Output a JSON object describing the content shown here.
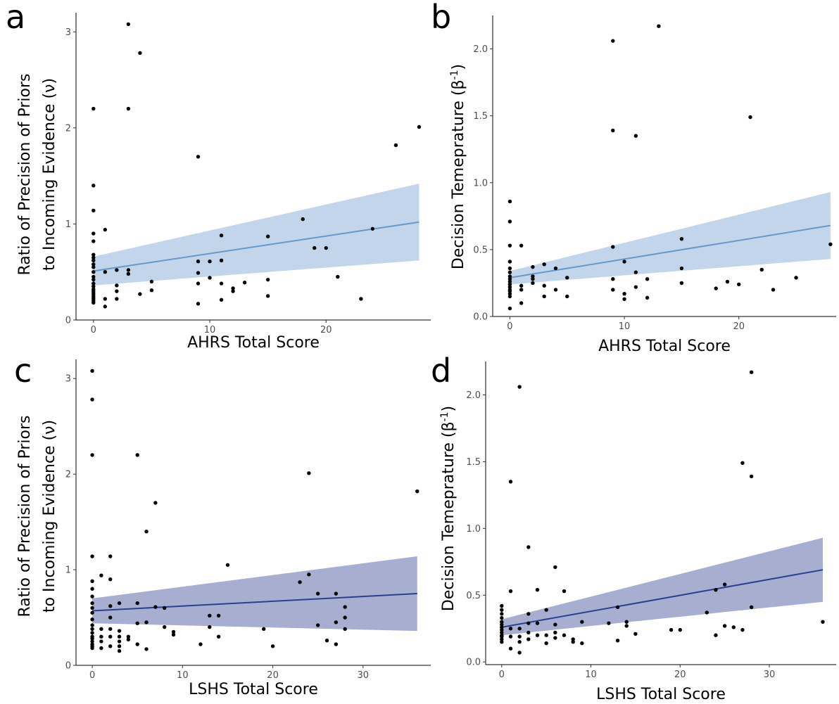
{
  "chart_data": [
    {
      "panel_label": "a",
      "type": "scatter",
      "xlabel": "AHRS Total Score",
      "ylabel_lines": [
        "Ratio of Precision of Priors",
        "to Incoming Evidence  (ν)"
      ],
      "xlim": [
        -1.5,
        29
      ],
      "ylim": [
        0,
        3.2
      ],
      "xticks": [
        0,
        10,
        20
      ],
      "yticks": [
        0,
        1,
        2,
        3
      ],
      "grid": false,
      "fit": {
        "x": [
          0,
          28
        ],
        "y": [
          0.51,
          1.02
        ],
        "lower": [
          0.36,
          0.62
        ],
        "upper": [
          0.66,
          1.42
        ],
        "color": "#6699cc",
        "band_color": "#c2d5ea"
      },
      "points": [
        [
          0,
          0.18
        ],
        [
          0,
          0.2
        ],
        [
          0,
          0.22
        ],
        [
          0,
          0.24
        ],
        [
          0,
          0.26
        ],
        [
          0,
          0.28
        ],
        [
          0,
          0.3
        ],
        [
          0,
          0.32
        ],
        [
          0,
          0.35
        ],
        [
          0,
          0.38
        ],
        [
          0,
          0.42
        ],
        [
          0,
          0.45
        ],
        [
          0,
          0.5
        ],
        [
          0,
          0.55
        ],
        [
          0,
          0.58
        ],
        [
          0,
          0.62
        ],
        [
          0,
          0.65
        ],
        [
          0,
          0.68
        ],
        [
          0,
          0.82
        ],
        [
          0,
          0.9
        ],
        [
          0,
          1.14
        ],
        [
          0,
          1.4
        ],
        [
          0,
          2.2
        ],
        [
          1,
          0.14
        ],
        [
          1,
          0.22
        ],
        [
          1,
          0.5
        ],
        [
          1,
          0.94
        ],
        [
          2,
          0.22
        ],
        [
          2,
          0.3
        ],
        [
          2,
          0.36
        ],
        [
          2,
          0.52
        ],
        [
          3,
          0.48
        ],
        [
          3,
          0.52
        ],
        [
          3,
          2.2
        ],
        [
          3,
          3.08
        ],
        [
          4,
          0.27
        ],
        [
          4,
          2.78
        ],
        [
          5,
          0.31
        ],
        [
          5,
          0.4
        ],
        [
          9,
          0.17
        ],
        [
          9,
          0.38
        ],
        [
          9,
          0.49
        ],
        [
          9,
          0.61
        ],
        [
          9,
          1.7
        ],
        [
          10,
          0.44
        ],
        [
          10,
          0.61
        ],
        [
          11,
          0.21
        ],
        [
          11,
          0.38
        ],
        [
          11,
          0.62
        ],
        [
          11,
          0.88
        ],
        [
          12,
          0.3
        ],
        [
          12,
          0.33
        ],
        [
          13,
          0.39
        ],
        [
          15,
          0.25
        ],
        [
          15,
          0.42
        ],
        [
          15,
          0.87
        ],
        [
          18,
          1.05
        ],
        [
          19,
          0.75
        ],
        [
          20,
          0.75
        ],
        [
          21,
          0.45
        ],
        [
          23,
          0.22
        ],
        [
          24,
          0.95
        ],
        [
          26,
          1.82
        ],
        [
          28,
          2.01
        ]
      ]
    },
    {
      "panel_label": "b",
      "type": "scatter",
      "xlabel": "AHRS Total Score",
      "ylabel_lines": [
        "Decision Temeprature (β-1)"
      ],
      "xlim": [
        -1.5,
        28.5
      ],
      "ylim": [
        0,
        2.25
      ],
      "xticks": [
        0,
        10,
        20
      ],
      "yticks": [
        0.0,
        0.5,
        1.0,
        1.5,
        2.0
      ],
      "yticklabels": [
        "0.0",
        "0.5",
        "1.0",
        "1.5",
        "2.0"
      ],
      "grid": false,
      "fit": {
        "x": [
          0,
          28
        ],
        "y": [
          0.29,
          0.68
        ],
        "lower": [
          0.24,
          0.43
        ],
        "upper": [
          0.34,
          0.93
        ],
        "color": "#6699cc",
        "band_color": "#c2d5ea"
      },
      "points": [
        [
          0,
          0.06
        ],
        [
          0,
          0.15
        ],
        [
          0,
          0.17
        ],
        [
          0,
          0.19
        ],
        [
          0,
          0.2
        ],
        [
          0,
          0.22
        ],
        [
          0,
          0.24
        ],
        [
          0,
          0.26
        ],
        [
          0,
          0.28
        ],
        [
          0,
          0.3
        ],
        [
          0,
          0.33
        ],
        [
          0,
          0.36
        ],
        [
          0,
          0.41
        ],
        [
          0,
          0.53
        ],
        [
          0,
          0.71
        ],
        [
          0,
          0.86
        ],
        [
          1,
          0.1
        ],
        [
          1,
          0.2
        ],
        [
          1,
          0.23
        ],
        [
          1,
          0.53
        ],
        [
          2,
          0.25
        ],
        [
          2,
          0.28
        ],
        [
          2,
          0.3
        ],
        [
          2,
          0.37
        ],
        [
          3,
          0.15
        ],
        [
          3,
          0.23
        ],
        [
          3,
          0.39
        ],
        [
          4,
          0.2
        ],
        [
          4,
          0.36
        ],
        [
          5,
          0.15
        ],
        [
          5,
          0.29
        ],
        [
          9,
          0.2
        ],
        [
          9,
          0.28
        ],
        [
          9,
          0.52
        ],
        [
          9,
          1.39
        ],
        [
          9,
          2.06
        ],
        [
          10,
          0.13
        ],
        [
          10,
          0.17
        ],
        [
          10,
          0.41
        ],
        [
          11,
          0.22
        ],
        [
          11,
          0.33
        ],
        [
          11,
          1.35
        ],
        [
          12,
          0.14
        ],
        [
          12,
          0.28
        ],
        [
          13,
          2.17
        ],
        [
          15,
          0.25
        ],
        [
          15,
          0.36
        ],
        [
          15,
          0.58
        ],
        [
          18,
          0.21
        ],
        [
          19,
          0.26
        ],
        [
          20,
          0.24
        ],
        [
          21,
          1.49
        ],
        [
          22,
          0.35
        ],
        [
          23,
          0.2
        ],
        [
          25,
          0.29
        ],
        [
          28,
          0.54
        ]
      ]
    },
    {
      "panel_label": "c",
      "type": "scatter",
      "xlabel": "LSHS Total Score",
      "ylabel_lines": [
        "Ratio of Precision of Priors",
        "to Incoming Evidence  (ν)"
      ],
      "xlim": [
        -1.8,
        37.5
      ],
      "ylim": [
        0,
        3.2
      ],
      "xticks": [
        0,
        10,
        20,
        30
      ],
      "yticks": [
        0,
        1,
        2,
        3
      ],
      "grid": false,
      "fit": {
        "x": [
          0,
          36
        ],
        "y": [
          0.57,
          0.75
        ],
        "lower": [
          0.44,
          0.36
        ],
        "upper": [
          0.7,
          1.14
        ],
        "color": "#2b3f8f",
        "band_color": "#a7aed0"
      },
      "points": [
        [
          0,
          0.18
        ],
        [
          0,
          0.2
        ],
        [
          0,
          0.22
        ],
        [
          0,
          0.25
        ],
        [
          0,
          0.28
        ],
        [
          0,
          0.3
        ],
        [
          0,
          0.34
        ],
        [
          0,
          0.38
        ],
        [
          0,
          0.42
        ],
        [
          0,
          0.48
        ],
        [
          0,
          0.55
        ],
        [
          0,
          0.6
        ],
        [
          0,
          0.65
        ],
        [
          0,
          0.72
        ],
        [
          0,
          0.8
        ],
        [
          0,
          0.88
        ],
        [
          0,
          1.14
        ],
        [
          0,
          2.2
        ],
        [
          0,
          2.78
        ],
        [
          0,
          3.08
        ],
        [
          1,
          0.18
        ],
        [
          1,
          0.25
        ],
        [
          1,
          0.3
        ],
        [
          1,
          0.38
        ],
        [
          1,
          0.94
        ],
        [
          2,
          0.2
        ],
        [
          2,
          0.3
        ],
        [
          2,
          0.38
        ],
        [
          2,
          0.5
        ],
        [
          2,
          0.62
        ],
        [
          2,
          0.9
        ],
        [
          2,
          1.14
        ],
        [
          3,
          0.15
        ],
        [
          3,
          0.2
        ],
        [
          3,
          0.25
        ],
        [
          3,
          0.3
        ],
        [
          3,
          0.36
        ],
        [
          3,
          0.65
        ],
        [
          4,
          0.27
        ],
        [
          4,
          0.3
        ],
        [
          5,
          0.22
        ],
        [
          5,
          0.44
        ],
        [
          5,
          0.65
        ],
        [
          5,
          2.2
        ],
        [
          6,
          0.17
        ],
        [
          6,
          0.45
        ],
        [
          6,
          1.4
        ],
        [
          7,
          0.61
        ],
        [
          7,
          1.7
        ],
        [
          8,
          0.4
        ],
        [
          8,
          0.6
        ],
        [
          9,
          0.32
        ],
        [
          9,
          0.35
        ],
        [
          12,
          0.22
        ],
        [
          13,
          0.4
        ],
        [
          13,
          0.52
        ],
        [
          14,
          0.3
        ],
        [
          14,
          0.52
        ],
        [
          15,
          1.05
        ],
        [
          19,
          0.38
        ],
        [
          20,
          0.2
        ],
        [
          23,
          0.87
        ],
        [
          24,
          0.95
        ],
        [
          24,
          2.01
        ],
        [
          25,
          0.42
        ],
        [
          25,
          0.75
        ],
        [
          26,
          0.26
        ],
        [
          27,
          0.22
        ],
        [
          27,
          0.45
        ],
        [
          27,
          0.75
        ],
        [
          28,
          0.38
        ],
        [
          28,
          0.5
        ],
        [
          28,
          0.61
        ],
        [
          36,
          1.82
        ]
      ]
    },
    {
      "panel_label": "d",
      "type": "scatter",
      "xlabel": "LSHS Total Score",
      "ylabel_lines": [
        "Decision Temeprature (β-1)"
      ],
      "xlim": [
        -1.8,
        37.5
      ],
      "ylim": [
        -0.02,
        2.25
      ],
      "xticks": [
        0,
        10,
        20,
        30
      ],
      "yticks": [
        0.0,
        0.5,
        1.0,
        1.5,
        2.0
      ],
      "yticklabels": [
        "0.0",
        "0.5",
        "1.0",
        "1.5",
        "2.0"
      ],
      "grid": false,
      "fit": {
        "x": [
          0,
          36
        ],
        "y": [
          0.26,
          0.69
        ],
        "lower": [
          0.2,
          0.45
        ],
        "upper": [
          0.32,
          0.93
        ],
        "color": "#2b3f8f",
        "band_color": "#a7aed0"
      },
      "points": [
        [
          0,
          0.15
        ],
        [
          0,
          0.17
        ],
        [
          0,
          0.19
        ],
        [
          0,
          0.2
        ],
        [
          0,
          0.22
        ],
        [
          0,
          0.24
        ],
        [
          0,
          0.26
        ],
        [
          0,
          0.28
        ],
        [
          0,
          0.3
        ],
        [
          0,
          0.33
        ],
        [
          0,
          0.36
        ],
        [
          0,
          0.39
        ],
        [
          0,
          0.42
        ],
        [
          1,
          0.1
        ],
        [
          1,
          0.19
        ],
        [
          1,
          0.25
        ],
        [
          1,
          0.53
        ],
        [
          1,
          1.35
        ],
        [
          2,
          0.07
        ],
        [
          2,
          0.15
        ],
        [
          2,
          0.19
        ],
        [
          2,
          0.25
        ],
        [
          2,
          2.06
        ],
        [
          3,
          0.17
        ],
        [
          3,
          0.22
        ],
        [
          3,
          0.29
        ],
        [
          3,
          0.36
        ],
        [
          3,
          0.86
        ],
        [
          4,
          0.2
        ],
        [
          4,
          0.29
        ],
        [
          4,
          0.54
        ],
        [
          5,
          0.14
        ],
        [
          5,
          0.2
        ],
        [
          5,
          0.39
        ],
        [
          6,
          0.18
        ],
        [
          6,
          0.22
        ],
        [
          6,
          0.28
        ],
        [
          6,
          0.71
        ],
        [
          7,
          0.2
        ],
        [
          7,
          0.53
        ],
        [
          8,
          0.15
        ],
        [
          8,
          0.17
        ],
        [
          9,
          0.14
        ],
        [
          9,
          0.3
        ],
        [
          12,
          0.29
        ],
        [
          13,
          0.16
        ],
        [
          13,
          0.41
        ],
        [
          14,
          0.27
        ],
        [
          14,
          0.3
        ],
        [
          15,
          0.21
        ],
        [
          19,
          0.24
        ],
        [
          20,
          0.24
        ],
        [
          23,
          0.37
        ],
        [
          24,
          0.2
        ],
        [
          24,
          0.54
        ],
        [
          25,
          0.27
        ],
        [
          25,
          0.58
        ],
        [
          26,
          0.26
        ],
        [
          27,
          0.24
        ],
        [
          27,
          1.49
        ],
        [
          28,
          0.41
        ],
        [
          28,
          1.39
        ],
        [
          28,
          2.17
        ],
        [
          36,
          0.3
        ]
      ]
    }
  ]
}
